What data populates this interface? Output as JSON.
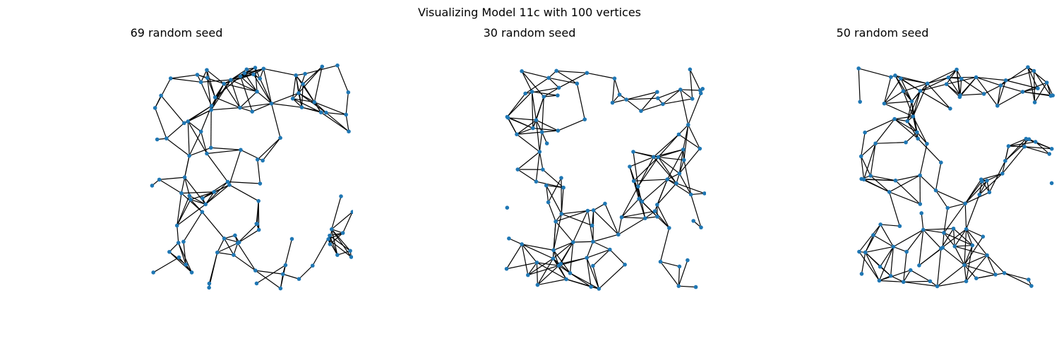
{
  "figure": {
    "title": "Visualizing Model 11c with 100 vertices",
    "node_color": "#1f77b4",
    "edge_color": "#000000"
  },
  "chart_data": [
    {
      "type": "network",
      "title": "69 random seed",
      "seed": 69,
      "vertices": 100,
      "note": "random geometric graph layout; node and edge positions are generated from the seed"
    },
    {
      "type": "network",
      "title": "30 random seed",
      "seed": 30,
      "vertices": 100,
      "note": "random geometric graph layout; node and edge positions are generated from the seed"
    },
    {
      "type": "network",
      "title": "50 random seed",
      "seed": 50,
      "vertices": 100,
      "note": "random geometric graph layout; node and edge positions are generated from the seed"
    }
  ]
}
